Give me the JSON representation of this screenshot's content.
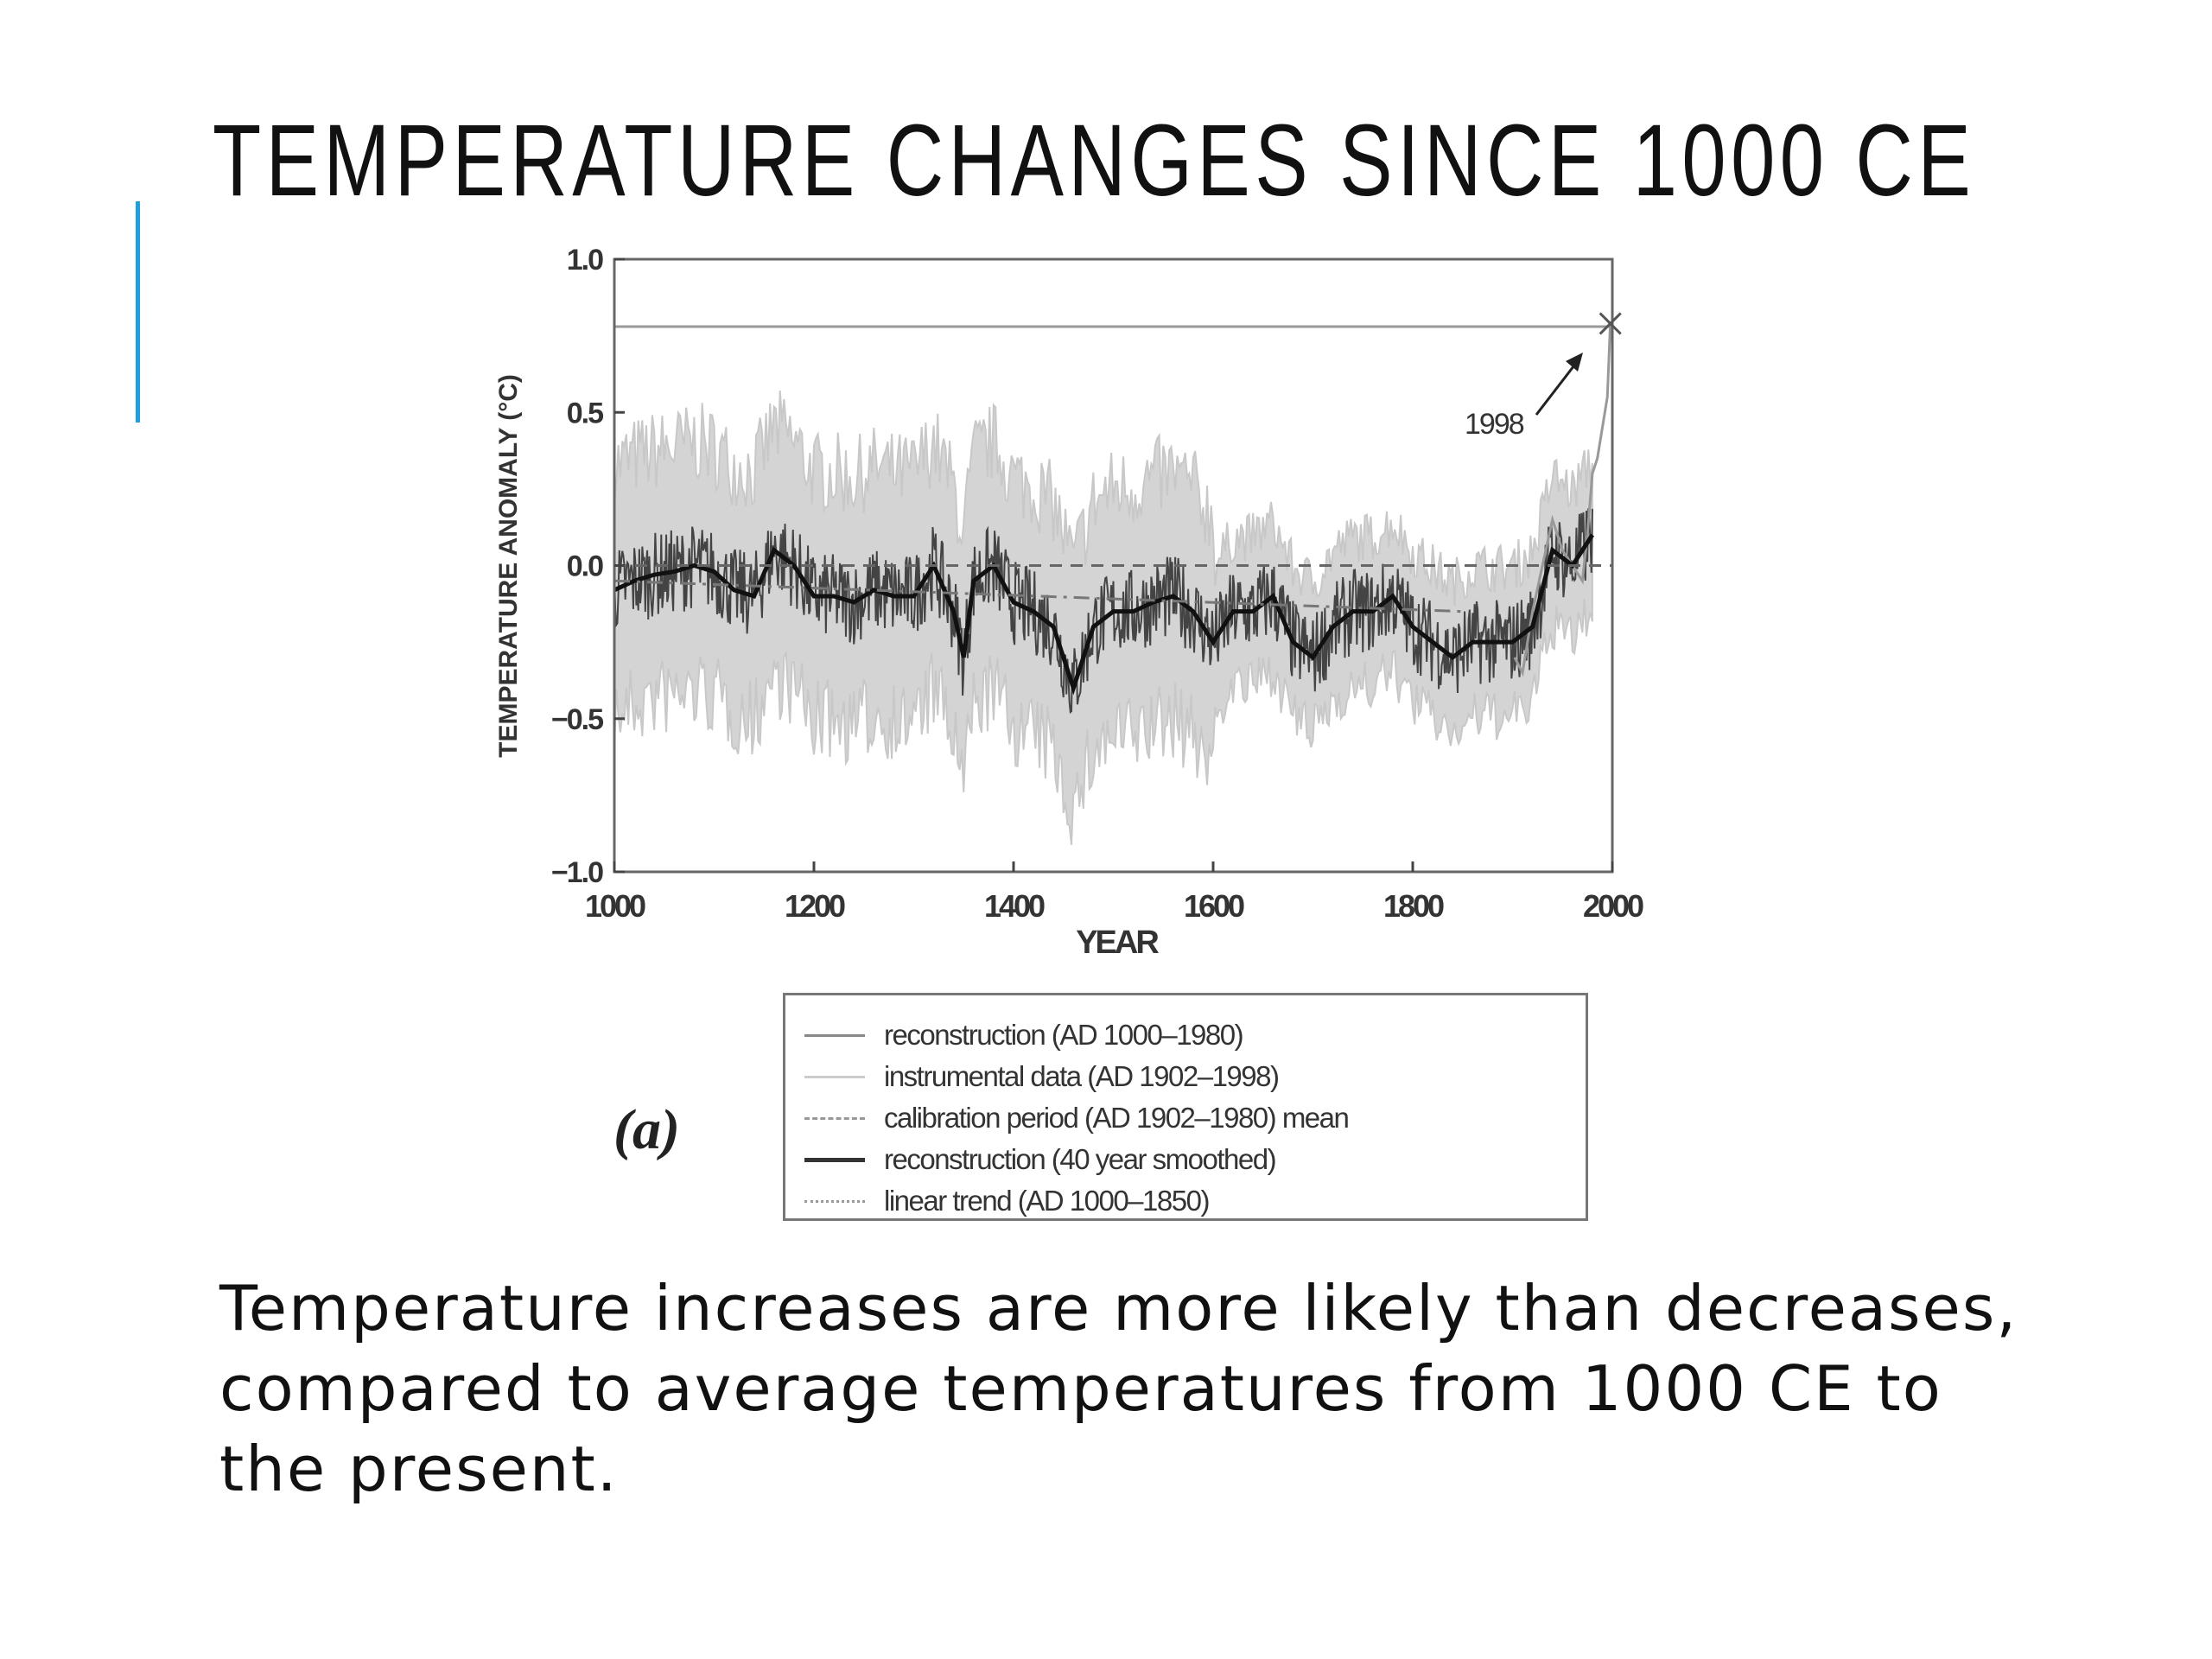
{
  "slide": {
    "title": "TEMPERATURE CHANGES SINCE 1000 CE",
    "accent_color": "#1ea0dc",
    "body": "Temperature increases are more likely than decreases, compared to average temperatures from 1000 CE to the present.",
    "panel_label": "(a)"
  },
  "chart_data": {
    "type": "line",
    "xlabel": "YEAR",
    "ylabel": "TEMPERATURE ANOMALY (°C)",
    "xlim": [
      1000,
      2000
    ],
    "ylim": [
      -1.0,
      1.0
    ],
    "xticks": [
      "1000",
      "1200",
      "1400",
      "1600",
      "1800",
      "2000"
    ],
    "yticks": [
      "1.0",
      "0.5",
      "0.0",
      "-0.5",
      "-1.0"
    ],
    "annotation": {
      "text": "1998",
      "x": 1998,
      "y": 0.79
    },
    "legend_placement": "below",
    "legend": [
      "reconstruction (AD 1000–1980)",
      "instrumental data (AD 1902–1998)",
      "calibration period (AD 1902–1980) mean",
      "reconstruction (40 year smoothed)",
      "linear trend (AD 1000–1850)"
    ],
    "uncertainty_halfwidth": 0.45,
    "smoothed": {
      "x": [
        1000,
        1020,
        1040,
        1060,
        1080,
        1100,
        1120,
        1140,
        1160,
        1180,
        1200,
        1220,
        1240,
        1260,
        1280,
        1300,
        1320,
        1340,
        1350,
        1360,
        1380,
        1400,
        1420,
        1440,
        1460,
        1480,
        1500,
        1520,
        1540,
        1560,
        1580,
        1600,
        1620,
        1640,
        1660,
        1680,
        1700,
        1720,
        1740,
        1760,
        1780,
        1800,
        1820,
        1840,
        1860,
        1880,
        1900,
        1920,
        1940,
        1960,
        1980
      ],
      "y": [
        -0.08,
        -0.05,
        -0.03,
        -0.02,
        0.0,
        -0.02,
        -0.08,
        -0.1,
        0.05,
        0.0,
        -0.1,
        -0.1,
        -0.12,
        -0.08,
        -0.1,
        -0.1,
        0.0,
        -0.15,
        -0.3,
        -0.05,
        0.0,
        -0.12,
        -0.15,
        -0.2,
        -0.4,
        -0.2,
        -0.15,
        -0.15,
        -0.12,
        -0.1,
        -0.15,
        -0.25,
        -0.15,
        -0.15,
        -0.1,
        -0.25,
        -0.3,
        -0.2,
        -0.15,
        -0.15,
        -0.1,
        -0.2,
        -0.25,
        -0.3,
        -0.25,
        -0.25,
        -0.25,
        -0.2,
        0.05,
        0.0,
        0.1
      ]
    },
    "instrumental": {
      "x": [
        1902,
        1910,
        1920,
        1930,
        1940,
        1950,
        1960,
        1970,
        1975,
        1980,
        1985,
        1990,
        1995,
        1998
      ],
      "y": [
        -0.3,
        -0.35,
        -0.15,
        0.0,
        0.15,
        0.05,
        0.0,
        -0.05,
        0.1,
        0.3,
        0.35,
        0.45,
        0.55,
        0.79
      ]
    },
    "calibration_mean": 0.0,
    "linear_trend": {
      "x": [
        1000,
        1850
      ],
      "y": [
        -0.05,
        -0.15
      ]
    },
    "reference_line_1998": 0.78
  }
}
